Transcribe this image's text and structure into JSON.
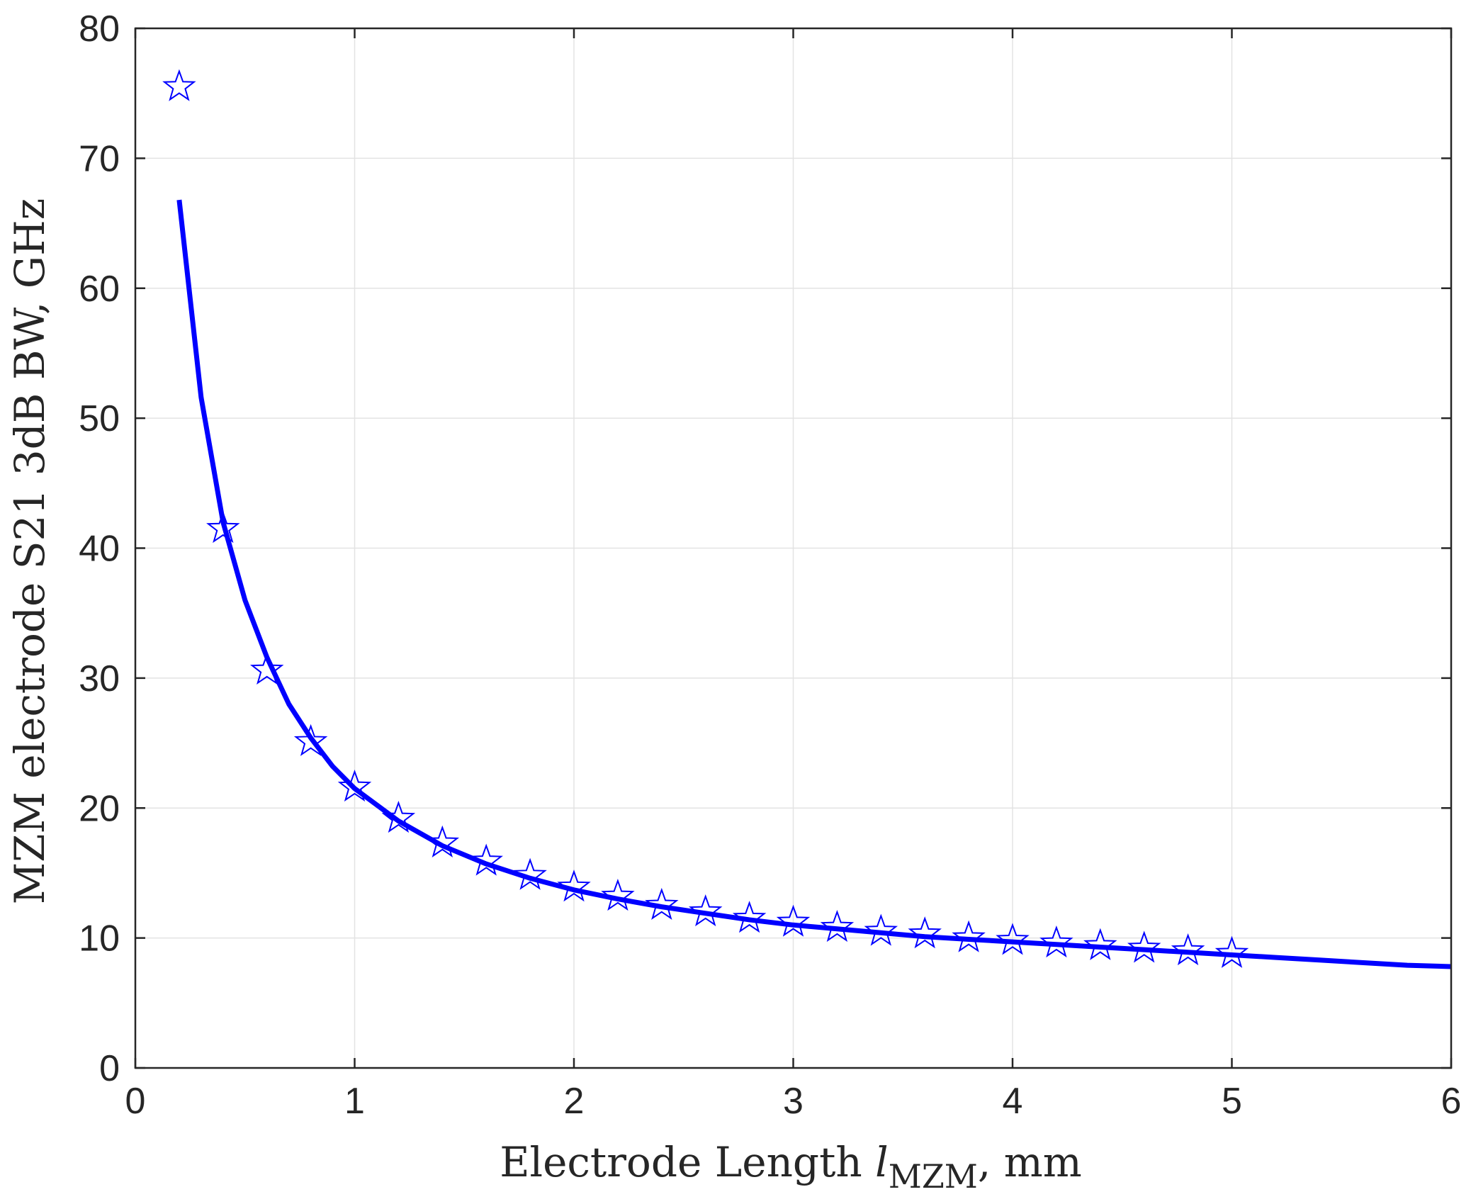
{
  "chart_data": {
    "type": "line",
    "title": "",
    "xlabel": {
      "prefix": "Electrode Length ",
      "symbol": "l",
      "subscript": "MZM",
      "suffix": ", mm"
    },
    "ylabel": "MZM electrode S21 3dB BW, GHz",
    "xlim": [
      0,
      6
    ],
    "ylim": [
      0,
      80
    ],
    "xticks": [
      0,
      1,
      2,
      3,
      4,
      5,
      6
    ],
    "yticks": [
      0,
      10,
      20,
      30,
      40,
      50,
      60,
      70,
      80
    ],
    "grid": true,
    "legend": "none",
    "series": [
      {
        "kind": "markers",
        "marker": "star",
        "color": "#0000ff",
        "x": [
          0.2,
          0.4,
          0.6,
          0.8,
          1.0,
          1.2,
          1.4,
          1.6,
          1.8,
          2.0,
          2.2,
          2.4,
          2.6,
          2.8,
          3.0,
          3.2,
          3.4,
          3.6,
          3.8,
          4.0,
          4.2,
          4.4,
          4.6,
          4.8,
          5.0
        ],
        "y": [
          75.5,
          41.5,
          30.6,
          25.1,
          21.6,
          19.2,
          17.3,
          15.9,
          14.8,
          13.9,
          13.2,
          12.5,
          12.0,
          11.5,
          11.2,
          10.8,
          10.5,
          10.3,
          10.0,
          9.8,
          9.6,
          9.4,
          9.2,
          9.0,
          8.8
        ]
      },
      {
        "kind": "line",
        "color": "#0000ff",
        "x": [
          0.2,
          0.3,
          0.4,
          0.5,
          0.6,
          0.7,
          0.8,
          0.9,
          1.0,
          1.2,
          1.4,
          1.6,
          1.8,
          2.0,
          2.2,
          2.4,
          2.6,
          2.8,
          3.0,
          3.2,
          3.4,
          3.6,
          3.8,
          4.0,
          4.2,
          4.4,
          4.6,
          4.8,
          5.0,
          5.2,
          5.4,
          5.6,
          5.8,
          6.0
        ],
        "y": [
          66.8,
          51.6,
          42.0,
          36.0,
          31.6,
          28.0,
          25.4,
          23.2,
          21.5,
          19.0,
          17.1,
          15.7,
          14.6,
          13.7,
          13.0,
          12.4,
          11.9,
          11.4,
          11.0,
          10.7,
          10.4,
          10.1,
          9.9,
          9.7,
          9.5,
          9.3,
          9.1,
          8.9,
          8.7,
          8.5,
          8.3,
          8.1,
          7.9,
          7.8
        ]
      }
    ]
  }
}
